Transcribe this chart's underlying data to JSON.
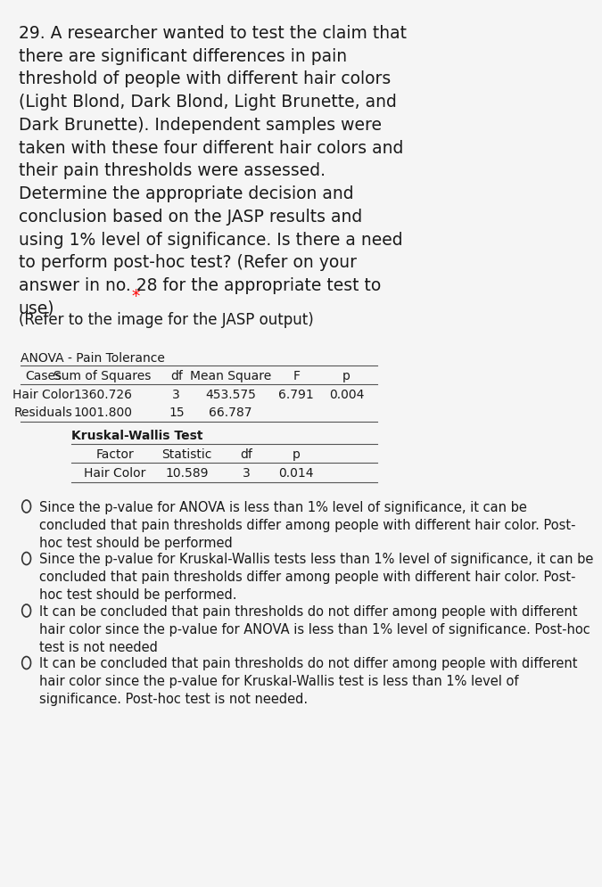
{
  "bg_color": "#f5f5f5",
  "question_text": "29. A researcher wanted to test the claim that\nthere are significant differences in pain\nthreshold of people with different hair colors\n(Light Blond, Dark Blond, Light Brunette, and\nDark Brunette). Independent samples were\ntaken with these four different hair colors and\ntheir pain thresholds were assessed.\nDetermine the appropriate decision and\nconclusion based on the JASP results and\nusing 1% level of significance. Is there a need\nto perform post-hoc test? (Refer on your\nanswer in no. 28 for the appropriate test to\nuse)",
  "asterisk": " *",
  "refer_text": "(Refer to the image for the JASP output)",
  "anova_title": "ANOVA - Pain Tolerance",
  "anova_headers": [
    "Cases",
    "Sum of Squares",
    "df",
    "Mean Square",
    "F",
    "p"
  ],
  "anova_row1": [
    "Hair Color",
    "1360.726",
    "3",
    "453.575",
    "6.791",
    "0.004"
  ],
  "anova_row2": [
    "Residuals",
    "1001.800",
    "15",
    "66.787",
    "",
    ""
  ],
  "kw_title": "Kruskal-Wallis Test",
  "kw_headers": [
    "Factor",
    "Statistic",
    "df",
    "p"
  ],
  "kw_row1": [
    "Hair Color",
    "10.589",
    "3",
    "0.014"
  ],
  "options": [
    "Since the p-value for ANOVA is less than 1% level of significance, it can be\nconcluded that pain thresholds differ among people with different hair color. Post-\nhoc test should be performed",
    "Since the p-value for Kruskal-Wallis tests less than 1% level of significance, it can be\nconcluded that pain thresholds differ among people with different hair color. Post-\nhoc test should be performed.",
    "It can be concluded that pain thresholds do not differ among people with different\nhair color since the p-value for ANOVA is less than 1% level of significance. Post-hoc\ntest is not needed",
    "It can be concluded that pain thresholds do not differ among people with different\nhair color since the p-value for Kruskal-Wallis test is less than 1% level of\nsignificance. Post-hoc test is not needed."
  ],
  "font_size_question": 13.5,
  "font_size_refer": 12,
  "font_size_table": 10,
  "font_size_options": 10.5
}
